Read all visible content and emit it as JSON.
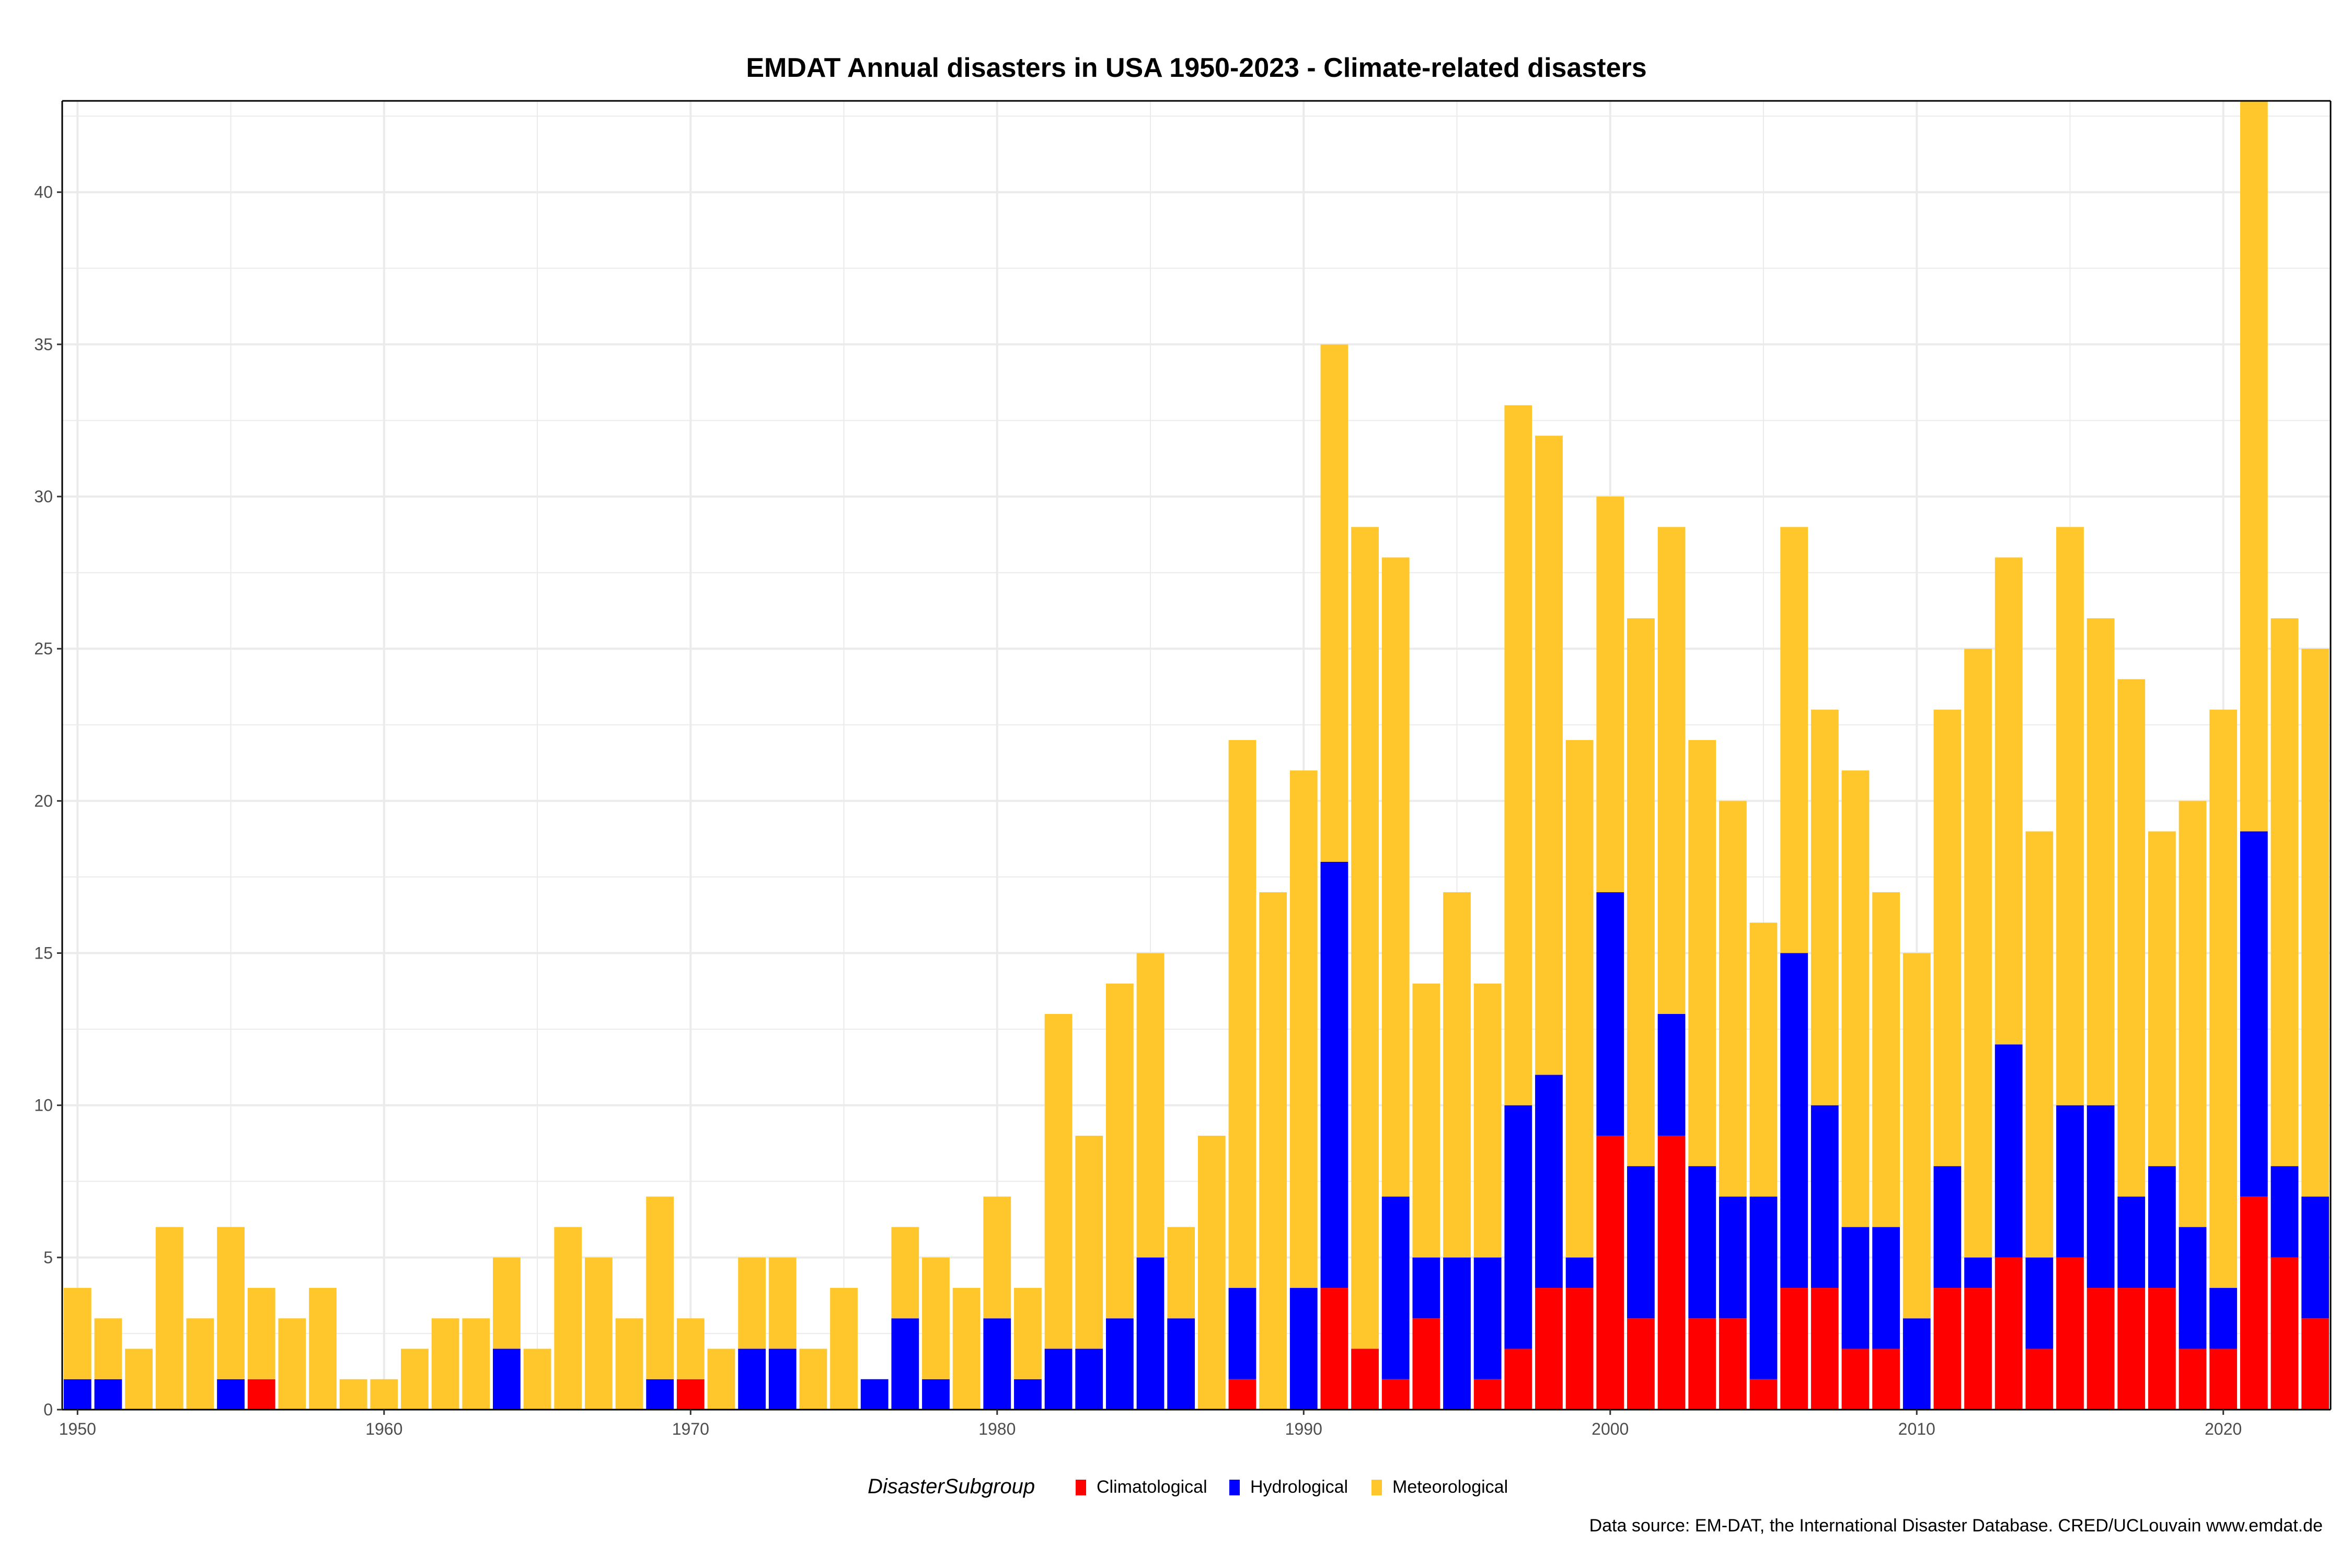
{
  "title": "EMDAT Annual disasters in USA 1950-2023 - Climate-related disasters",
  "caption": "Data source: EM-DAT, the International Disaster Database. CRED/UCLouvain www.emdat.de",
  "legend": {
    "title": "DisasterSubgroup",
    "items": [
      {
        "label": "Climatological",
        "color": "#ff0000"
      },
      {
        "label": "Hydrological",
        "color": "#0000ff"
      },
      {
        "label": "Meteorological",
        "color": "#ffc72c"
      }
    ]
  },
  "chart_data": {
    "type": "bar",
    "stacked": true,
    "title": "EMDAT Annual disasters in USA 1950-2023 - Climate-related disasters",
    "xlabel": "",
    "ylabel": "",
    "xlim": [
      1949.5,
      2023.5
    ],
    "ylim": [
      0,
      43
    ],
    "x_ticks": [
      1950,
      1960,
      1970,
      1980,
      1990,
      2000,
      2010,
      2020
    ],
    "y_ticks": [
      0,
      5,
      10,
      15,
      20,
      25,
      30,
      35,
      40
    ],
    "grid": true,
    "legend_position": "bottom",
    "categories": [
      1950,
      1951,
      1952,
      1953,
      1954,
      1955,
      1956,
      1957,
      1958,
      1959,
      1960,
      1961,
      1962,
      1963,
      1964,
      1965,
      1966,
      1967,
      1968,
      1969,
      1970,
      1971,
      1972,
      1973,
      1974,
      1975,
      1976,
      1977,
      1978,
      1979,
      1980,
      1981,
      1982,
      1983,
      1984,
      1985,
      1986,
      1987,
      1988,
      1989,
      1990,
      1991,
      1992,
      1993,
      1994,
      1995,
      1996,
      1997,
      1998,
      1999,
      2000,
      2001,
      2002,
      2003,
      2004,
      2005,
      2006,
      2007,
      2008,
      2009,
      2010,
      2011,
      2012,
      2013,
      2014,
      2015,
      2016,
      2017,
      2018,
      2019,
      2020,
      2021,
      2022,
      2023
    ],
    "series": [
      {
        "name": "Climatological",
        "color": "#ff0000",
        "values": [
          0,
          0,
          0,
          0,
          0,
          0,
          1,
          0,
          0,
          0,
          0,
          0,
          0,
          0,
          0,
          0,
          0,
          0,
          0,
          0,
          1,
          0,
          0,
          0,
          0,
          0,
          0,
          0,
          0,
          0,
          0,
          0,
          0,
          0,
          0,
          0,
          0,
          0,
          1,
          0,
          0,
          4,
          2,
          1,
          3,
          0,
          1,
          2,
          4,
          4,
          9,
          3,
          9,
          3,
          3,
          1,
          4,
          4,
          2,
          2,
          0,
          4,
          4,
          5,
          2,
          5,
          4,
          4,
          4,
          2,
          2,
          7,
          5,
          3
        ]
      },
      {
        "name": "Hydrological",
        "color": "#0000ff",
        "values": [
          1,
          1,
          0,
          0,
          0,
          1,
          0,
          0,
          0,
          0,
          0,
          0,
          0,
          0,
          2,
          0,
          0,
          0,
          0,
          1,
          0,
          0,
          2,
          2,
          0,
          0,
          1,
          3,
          1,
          0,
          3,
          1,
          2,
          2,
          3,
          5,
          3,
          0,
          3,
          0,
          4,
          14,
          0,
          6,
          2,
          5,
          4,
          8,
          7,
          1,
          8,
          5,
          4,
          5,
          4,
          6,
          11,
          6,
          4,
          4,
          3,
          4,
          1,
          7,
          3,
          5,
          6,
          3,
          4,
          4,
          2,
          12,
          3,
          4
        ]
      },
      {
        "name": "Meteorological",
        "color": "#ffc72c",
        "values": [
          3,
          2,
          2,
          6,
          3,
          5,
          3,
          3,
          4,
          1,
          1,
          2,
          3,
          3,
          3,
          2,
          6,
          5,
          3,
          6,
          2,
          2,
          3,
          3,
          2,
          4,
          0,
          3,
          4,
          4,
          4,
          3,
          11,
          7,
          11,
          10,
          3,
          9,
          18,
          17,
          17,
          17,
          27,
          21,
          9,
          12,
          9,
          23,
          21,
          17,
          13,
          18,
          16,
          14,
          13,
          9,
          14,
          13,
          15,
          11,
          12,
          15,
          20,
          16,
          14,
          19,
          16,
          17,
          11,
          14,
          19,
          24,
          18,
          18
        ]
      }
    ]
  }
}
